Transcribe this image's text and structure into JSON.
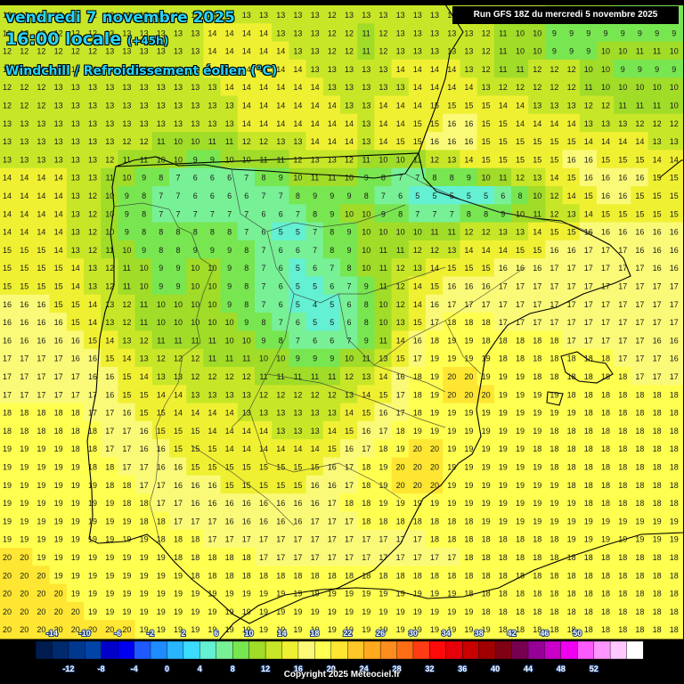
{
  "header": {
    "date_line": "vendredi 7 novembre 2025",
    "time_main": "16:00 locale",
    "time_offset": "(+45h)",
    "parameter": "Windchill / Refroidissement éolien (°C)",
    "run_info": "Run GFS 18Z du mercredi 5 novembre 2025"
  },
  "footer": {
    "copyright": "Copyright 2025 Meteociel.fr"
  },
  "legend": {
    "unit": "(°C)",
    "top_labels": [
      "-14",
      "-10",
      "-6",
      "-2",
      "2",
      "6",
      "10",
      "14",
      "18",
      "22",
      "26",
      "30",
      "34",
      "38",
      "42",
      "46",
      "50"
    ],
    "bottom_labels": [
      "-12",
      "-8",
      "-4",
      "0",
      "4",
      "8",
      "12",
      "16",
      "20",
      "24",
      "28",
      "32",
      "36",
      "40",
      "44",
      "48",
      "52"
    ],
    "colors": [
      "#001b4d",
      "#002a6e",
      "#00378f",
      "#0044a8",
      "#0000c8",
      "#0000f0",
      "#1e5aff",
      "#1e8cff",
      "#28b4ff",
      "#3cdcff",
      "#64f0d2",
      "#78f096",
      "#78e650",
      "#a0dc28",
      "#c8e628",
      "#f0f032",
      "#fafa78",
      "#ffff50",
      "#ffe632",
      "#ffc828",
      "#ffaa1e",
      "#ff8c1e",
      "#ff6e14",
      "#ff3c14",
      "#ff0a0a",
      "#e6000a",
      "#c80000",
      "#a00000",
      "#800014",
      "#780050",
      "#960096",
      "#c800c8",
      "#f000f0",
      "#ff5aff",
      "#ff96ff",
      "#ffc8ff",
      "#ffffff"
    ]
  },
  "map": {
    "region": "Iberian Peninsula",
    "grid_rows": [
      "12 12 12 12 12 12 13 13 13 13 13 13 13 13 13 13 13 13 13 12 13 13 13 13 13 13 13 13 13 13 13 12 11 10 10 10 9 9 9 9",
      "12 12 12 12 12 12 13 13 13 13 13 13 14 14 14 14 13 13 13 12 12 11 12 13 13 13 13 13 12 11 10 10 9 9 9 9 9 9 9 9",
      "12 12 12 12 12 12 13 13 13 13 13 13 14 14 14 14 14 13 13 12 12 11 12 13 13 13 13 13 12 11 10 10 9 9 9 10 10 11 11 10",
      "12 12 12 12 13 13 13 13 13 13 13 13 14 14 14 14 14 14 13 13 13 13 13 14 14 14 14 13 12 11 11 12 12 12 10 10 9 9 9 9",
      "12 12 12 13 13 13 13 13 13 13 13 13 13 14 14 14 14 14 14 13 13 13 13 13 14 14 14 14 13 12 12 12 12 12 11 10 10 10 10 10",
      "12 12 12 13 13 13 13 13 13 13 13 13 13 13 14 14 14 14 14 14 13 13 14 14 14 15 15 15 15 14 14 13 13 13 12 12 11 11 11 10",
      "13 13 13 13 13 13 13 13 13 13 13 13 13 13 14 14 14 14 14 14 14 13 14 14 15 15 16 16 15 15 14 14 14 14 13 13 13 12 12 12",
      "13 13 13 13 13 13 13 12 12 11 10 10 11 11 12 12 13 13 14 14 14 13 14 15 15 16 16 16 15 15 15 15 15 15 14 14 14 14 13 13",
      "13 13 13 13 13 13 12 11 11 10 10 9 9 10 10 11 11 12 13 13 12 11 10 10 11 12 13 14 15 15 15 15 15 16 16 15 15 15 14 14",
      "14 14 14 14 13 13 11 10 9 8 7 6 6 6 7 8 9 10 11 11 10 9 8 7 7 8 8 9 10 11 12 13 14 15 16 16 16 16 15 15",
      "14 14 14 14 13 12 10 9 8 7 7 6 6 6 6 7 7 8 9 9 9 8 7 6 5 5 5 5 5 6 8 10 12 14 15 16 16 15 15 15",
      "14 14 14 14 13 12 10 9 8 7 7 7 7 7 7 6 6 7 8 9 10 10 9 8 7 7 7 8 8 9 10 11 12 13 14 15 15 15 15 15",
      "14 14 14 14 13 12 10 9 8 8 8 8 8 8 7 6 5 5 7 8 9 10 10 10 10 11 11 12 12 13 13 14 15 15 16 16 16 16 16 16",
      "15 15 15 14 13 12 11 10 9 8 8 9 9 9 8 7 6 6 7 8 9 10 11 11 12 12 13 14 14 14 15 15 16 16 17 17 17 16 16 16",
      "15 15 15 15 14 13 12 11 10 9 9 10 10 9 8 7 6 5 6 7 8 10 11 12 13 14 15 15 15 16 16 16 17 17 17 17 17 17 16 16",
      "15 15 15 15 14 13 12 11 10 9 9 10 10 9 8 7 6 5 5 6 7 9 11 12 14 15 16 16 16 17 17 17 17 17 17 17 17 17 17 17",
      "16 16 16 15 15 14 13 12 11 10 10 10 10 9 8 7 6 5 4 5 6 8 10 12 14 16 17 17 17 17 17 17 17 17 17 17 17 17 17 17",
      "16 16 16 16 15 14 13 12 11 10 10 10 10 10 9 8 7 6 5 5 6 8 10 13 15 17 18 18 18 17 17 17 17 17 17 17 17 17 17 17",
      "16 16 16 16 16 15 14 13 12 11 11 11 11 10 10 9 8 7 6 6 7 9 11 14 16 18 19 19 18 18 18 18 18 17 17 17 17 17 16 16",
      "17 17 17 17 16 16 15 14 13 12 12 12 11 11 11 10 10 9 9 9 10 11 13 15 17 19 19 19 19 18 18 18 18 18 18 18 17 17 17 16",
      "17 17 17 17 17 16 16 15 14 13 13 12 12 12 12 11 11 11 11 11 12 13 14 16 18 19 20 20 19 19 19 18 18 18 18 18 18 17 17 17",
      "17 17 17 17 17 17 16 15 15 14 14 13 13 13 13 12 12 12 12 12 13 14 15 17 18 19 20 20 20 19 19 19 19 18 18 18 18 18 18 18",
      "18 18 18 18 18 17 17 16 15 15 14 14 14 14 13 13 13 13 13 13 14 15 16 17 18 19 19 19 19 19 19 19 19 19 18 18 18 18 18 18",
      "18 18 18 18 18 18 17 17 16 15 15 15 14 14 14 14 13 13 13 14 15 16 17 18 19 19 19 19 19 19 19 19 18 18 18 18 18 18 18 18",
      "19 19 19 19 18 18 17 17 16 16 15 15 15 14 14 14 14 14 14 15 16 17 18 19 20 20 19 19 19 19 19 18 18 18 18 18 18 18 18 18",
      "19 19 19 19 19 18 18 17 17 16 16 15 15 15 15 15 15 15 15 16 17 18 19 20 20 20 19 19 19 19 19 19 18 18 18 18 18 18 18 18",
      "19 19 19 19 19 19 18 18 17 17 16 16 16 15 15 15 15 15 16 16 17 18 19 20 20 20 19 19 19 19 19 19 19 18 18 18 18 18 18 18",
      "19 19 19 19 19 19 19 18 18 17 17 16 16 16 16 16 16 16 16 17 18 18 19 19 19 19 19 19 19 19 19 19 19 19 18 18 18 18 18 18",
      "19 19 19 19 19 19 19 19 18 18 17 17 17 16 16 16 16 16 17 17 17 18 18 18 18 18 18 18 19 19 19 19 19 19 19 19 19 19 19 19",
      "19 19 19 19 19 19 19 19 19 18 18 18 17 17 17 17 17 17 17 17 17 17 17 17 17 18 18 18 18 18 18 18 18 19 19 19 19 19 19 19",
      "20 20 19 19 19 19 19 19 19 19 18 18 18 18 18 17 17 17 17 17 17 17 17 17 17 17 17 18 18 18 18 18 18 18 18 18 18 18 18 18",
      "20 20 20 19 19 19 19 19 19 19 19 18 18 18 18 18 18 18 18 18 18 18 18 18 18 18 18 18 18 18 18 18 18 18 18 18 18 18 18 18",
      "20 20 20 20 19 19 19 19 19 19 19 19 19 19 19 19 19 19 19 19 19 19 19 19 19 19 19 18 18 18 18 18 18 18 18 18 18 18 18 18",
      "20 20 20 20 20 19 19 19 19 19 19 19 19 19 19 19 19 19 19 19 19 19 19 19 19 19 19 19 18 18 18 18 18 18 18 18 18 18 18 18",
      "20 20 20 20 20 20 20 20 19 19 19 19 19 19 19 19 19 19 19 19 19 19 19 19 19 19 19 19 19 18 18 18 18 18 18 18 18 18 18 18"
    ]
  }
}
